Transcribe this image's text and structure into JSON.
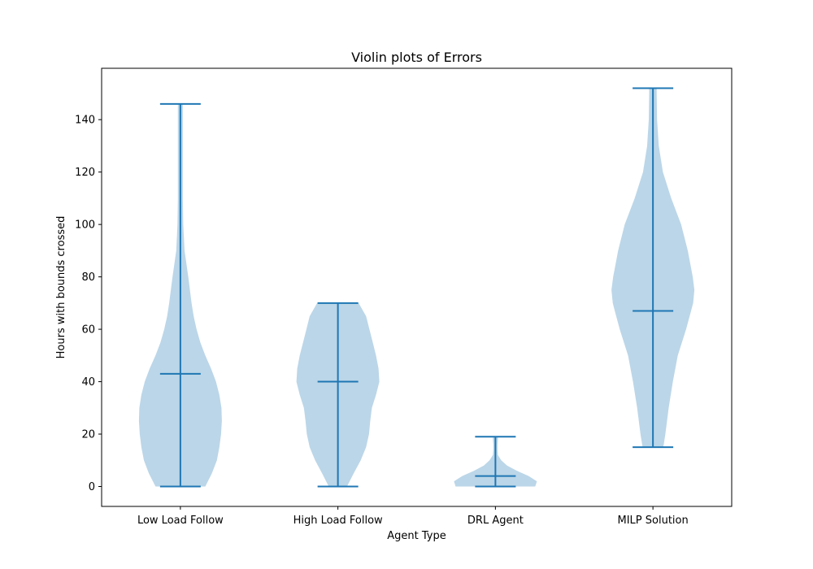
{
  "chart_data": {
    "type": "violin",
    "title": "Violin plots of Errors",
    "xlabel": "Agent Type",
    "ylabel": "Hours with bounds crossed",
    "categories": [
      "Low Load Follow",
      "High Load Follow",
      "DRL Agent",
      "MILP Solution"
    ],
    "ylim": [
      -7.6,
      159.6
    ],
    "yticks": [
      0,
      20,
      40,
      60,
      80,
      100,
      120,
      140
    ],
    "grid": false,
    "colors": {
      "body": "#1f77b4",
      "body_alpha": 0.3,
      "lines": "#1f77b4"
    },
    "series": [
      {
        "min": 0,
        "max": 146,
        "median": 43,
        "density": [
          [
            0,
            0.6
          ],
          [
            5,
            0.76
          ],
          [
            10,
            0.88
          ],
          [
            15,
            0.94
          ],
          [
            20,
            0.98
          ],
          [
            25,
            1.0
          ],
          [
            30,
            0.99
          ],
          [
            35,
            0.94
          ],
          [
            40,
            0.86
          ],
          [
            45,
            0.74
          ],
          [
            50,
            0.6
          ],
          [
            55,
            0.48
          ],
          [
            60,
            0.39
          ],
          [
            65,
            0.32
          ],
          [
            70,
            0.27
          ],
          [
            80,
            0.19
          ],
          [
            90,
            0.1
          ],
          [
            100,
            0.07
          ],
          [
            110,
            0.06
          ],
          [
            120,
            0.06
          ],
          [
            130,
            0.06
          ],
          [
            140,
            0.06
          ],
          [
            146,
            0.06
          ]
        ]
      },
      {
        "min": 0,
        "max": 70,
        "median": 40,
        "density": [
          [
            0,
            0.22
          ],
          [
            5,
            0.38
          ],
          [
            10,
            0.55
          ],
          [
            15,
            0.68
          ],
          [
            20,
            0.75
          ],
          [
            25,
            0.78
          ],
          [
            30,
            0.82
          ],
          [
            35,
            0.92
          ],
          [
            40,
            1.0
          ],
          [
            45,
            0.98
          ],
          [
            50,
            0.92
          ],
          [
            55,
            0.84
          ],
          [
            60,
            0.76
          ],
          [
            65,
            0.68
          ],
          [
            70,
            0.5
          ]
        ]
      },
      {
        "min": 0,
        "max": 19,
        "median": 4,
        "density": [
          [
            0,
            0.96
          ],
          [
            2,
            1.0
          ],
          [
            4,
            0.8
          ],
          [
            6,
            0.52
          ],
          [
            8,
            0.28
          ],
          [
            10,
            0.14
          ],
          [
            12,
            0.06
          ],
          [
            14,
            0.05
          ],
          [
            16,
            0.05
          ],
          [
            18,
            0.06
          ],
          [
            19,
            0.06
          ]
        ]
      },
      {
        "min": 15,
        "max": 152,
        "median": 67,
        "density": [
          [
            15,
            0.25
          ],
          [
            20,
            0.3
          ],
          [
            30,
            0.38
          ],
          [
            40,
            0.48
          ],
          [
            50,
            0.6
          ],
          [
            60,
            0.8
          ],
          [
            67,
            0.92
          ],
          [
            70,
            0.97
          ],
          [
            75,
            1.0
          ],
          [
            80,
            0.96
          ],
          [
            90,
            0.84
          ],
          [
            100,
            0.68
          ],
          [
            110,
            0.44
          ],
          [
            120,
            0.24
          ],
          [
            130,
            0.14
          ],
          [
            140,
            0.1
          ],
          [
            150,
            0.09
          ],
          [
            152,
            0.09
          ]
        ]
      }
    ]
  }
}
